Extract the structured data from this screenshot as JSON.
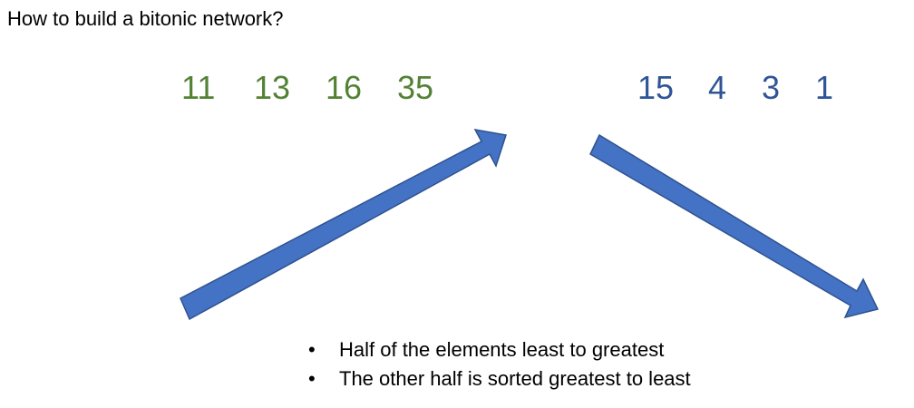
{
  "title": "How to build a bitonic network?",
  "ascending_sequence": [
    "11",
    "13",
    "16",
    "35"
  ],
  "descending_sequence": [
    "15",
    "4",
    "3",
    "1"
  ],
  "bullets": [
    "Half of the elements least to greatest",
    "The other half is sorted greatest to least"
  ],
  "colors": {
    "ascending_text": "#548235",
    "descending_text": "#2f5597",
    "arrow_fill": "#4472c4",
    "arrow_stroke": "#2f528f"
  }
}
